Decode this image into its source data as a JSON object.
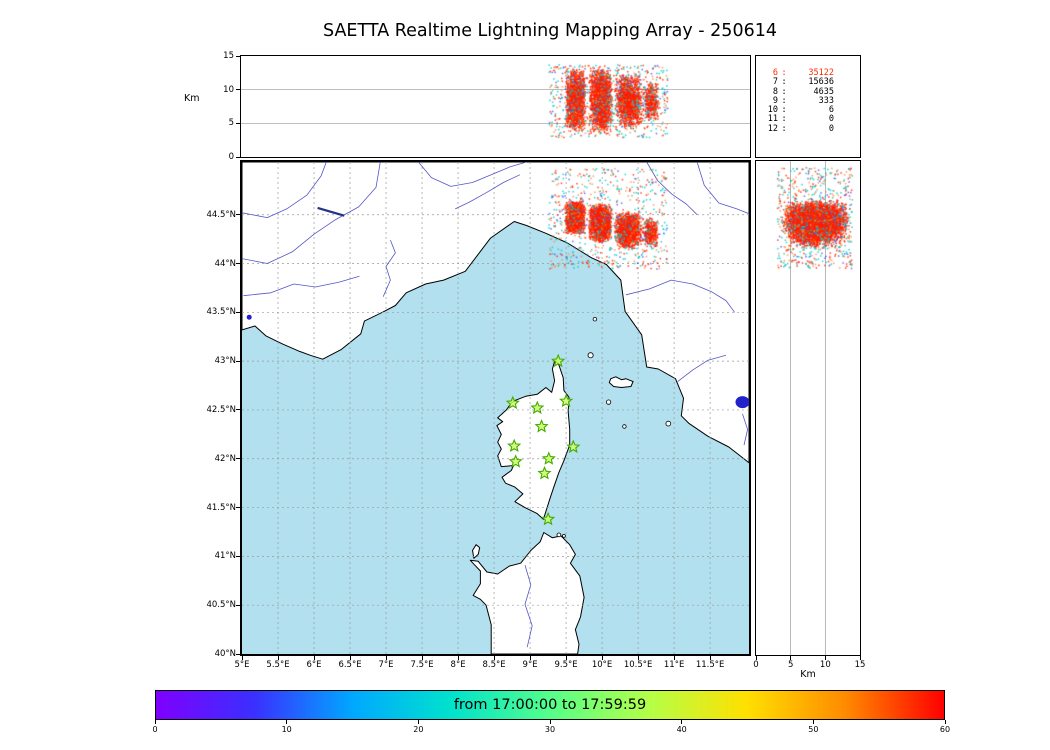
{
  "title": "SAETTA Realtime Lightning Mapping Array - 250614",
  "colors": {
    "sea": "#b2e0ee",
    "land": "#ffffff",
    "coast": "#000000",
    "grid": "#999999",
    "river": "#5555c8",
    "lake": "#2222cc",
    "station_fill": "#ccff66",
    "station_edge": "#44aa00",
    "highlight_row": "#ff2a00"
  },
  "axes": {
    "top_ylabel": "Km",
    "right_xlabel": "Km",
    "alt_ticks": [
      {
        "v": 0,
        "t": "0"
      },
      {
        "v": 5,
        "t": "5"
      },
      {
        "v": 10,
        "t": "10"
      },
      {
        "v": 15,
        "t": "15"
      }
    ],
    "lat_ticks": [
      {
        "v": 40,
        "t": "40°N"
      },
      {
        "v": 40.5,
        "t": "40.5°N"
      },
      {
        "v": 41,
        "t": "41°N"
      },
      {
        "v": 41.5,
        "t": "41.5°N"
      },
      {
        "v": 42,
        "t": "42°N"
      },
      {
        "v": 42.5,
        "t": "42.5°N"
      },
      {
        "v": 43,
        "t": "43°N"
      },
      {
        "v": 43.5,
        "t": "43.5°N"
      },
      {
        "v": 44,
        "t": "44°N"
      },
      {
        "v": 44.5,
        "t": "44.5°N"
      }
    ],
    "lon_ticks": [
      {
        "v": 5,
        "t": "5°E"
      },
      {
        "v": 5.5,
        "t": "5.5°E"
      },
      {
        "v": 6,
        "t": "6°E"
      },
      {
        "v": 6.5,
        "t": "6.5°E"
      },
      {
        "v": 7,
        "t": "7°E"
      },
      {
        "v": 7.5,
        "t": "7.5°E"
      },
      {
        "v": 8,
        "t": "8°E"
      },
      {
        "v": 8.5,
        "t": "8.5°E"
      },
      {
        "v": 9,
        "t": "9°E"
      },
      {
        "v": 9.5,
        "t": "9.5°E"
      },
      {
        "v": 10,
        "t": "10°E"
      },
      {
        "v": 10.5,
        "t": "10.5°E"
      },
      {
        "v": 11,
        "t": "11°E"
      },
      {
        "v": 11.5,
        "t": "11.5°E"
      }
    ]
  },
  "stats_panel": {
    "separator": ":",
    "rows": [
      {
        "level": "6",
        "count": "35122"
      },
      {
        "level": "7",
        "count": "15636"
      },
      {
        "level": "8",
        "count": "4635"
      },
      {
        "level": "9",
        "count": "333"
      },
      {
        "level": "10",
        "count": "6"
      },
      {
        "level": "11",
        "count": "0"
      },
      {
        "level": "12",
        "count": "0"
      }
    ]
  },
  "colorbar": {
    "label": "from 17:00:00 to 17:59:59",
    "ticks": [
      {
        "v": 0,
        "t": "0"
      },
      {
        "v": 10,
        "t": "10"
      },
      {
        "v": 20,
        "t": "20"
      },
      {
        "v": 30,
        "t": "30"
      },
      {
        "v": 40,
        "t": "40"
      },
      {
        "v": 50,
        "t": "50"
      },
      {
        "v": 60,
        "t": "60"
      }
    ],
    "gradient": [
      "#7f00ff",
      "#3a30ff",
      "#00a8ff",
      "#00e2cc",
      "#55ff8a",
      "#b4ff48",
      "#ffe000",
      "#ff8a00",
      "#ff0000"
    ]
  },
  "stations": [
    [
      9.39,
      43.0
    ],
    [
      8.76,
      42.57
    ],
    [
      9.1,
      42.52
    ],
    [
      9.5,
      42.59
    ],
    [
      9.16,
      42.33
    ],
    [
      8.78,
      42.13
    ],
    [
      9.6,
      42.12
    ],
    [
      8.8,
      41.97
    ],
    [
      9.26,
      42.0
    ],
    [
      9.2,
      41.85
    ],
    [
      9.25,
      41.38
    ]
  ],
  "chart_data": {
    "type": "scatter",
    "title": "SAETTA Realtime Lightning Mapping Array - 250614",
    "date": "250614",
    "time_window": {
      "from": "17:00:00",
      "to": "17:59:59"
    },
    "colorbar_axis": {
      "units": "minutes",
      "range": [
        0,
        60
      ]
    },
    "panels": [
      {
        "id": "altitude-vs-longitude",
        "ylabel": "Km",
        "ylim": [
          0,
          15
        ],
        "xlim": [
          5,
          12.04
        ],
        "grid_y": [
          5,
          10
        ]
      },
      {
        "id": "map",
        "xlim": [
          5,
          12.04
        ],
        "ylim": [
          40,
          45.04
        ],
        "grid_step_deg": 0.5
      },
      {
        "id": "altitude-vs-latitude",
        "xlabel": "Km",
        "xlim": [
          0,
          15
        ],
        "ylim": [
          40,
          45.04
        ],
        "grid_x": [
          5,
          10
        ]
      }
    ],
    "sources_by_min_stations": [
      [
        "6",
        35122
      ],
      [
        "7",
        15636
      ],
      [
        "8",
        4635
      ],
      [
        "9",
        333
      ],
      [
        "10",
        6
      ],
      [
        "11",
        0
      ],
      [
        "12",
        0
      ]
    ],
    "clusters": [
      {
        "n": 1900,
        "lon": [
          9.47,
          9.77
        ],
        "lat": [
          44.3,
          44.65
        ],
        "alt": [
          3.8,
          13.2
        ],
        "palette": "core",
        "dist": "tri"
      },
      {
        "n": 2100,
        "lon": [
          9.8,
          10.13
        ],
        "lat": [
          44.22,
          44.62
        ],
        "alt": [
          3.5,
          13.5
        ],
        "palette": "core",
        "dist": "tri"
      },
      {
        "n": 1500,
        "lon": [
          10.16,
          10.55
        ],
        "lat": [
          44.15,
          44.55
        ],
        "alt": [
          4.2,
          12.6
        ],
        "palette": "core",
        "dist": "tri"
      },
      {
        "n": 400,
        "lon": [
          10.55,
          10.78
        ],
        "lat": [
          44.18,
          44.48
        ],
        "alt": [
          5.0,
          11.5
        ],
        "palette": "core",
        "dist": "tri"
      },
      {
        "n": 650,
        "lon": [
          9.25,
          10.9
        ],
        "lat": [
          43.95,
          44.98
        ],
        "alt": [
          3.0,
          13.8
        ],
        "palette": "halo",
        "dist": "uniform"
      }
    ],
    "palettes": {
      "core": [
        {
          "c": "#ff1c00",
          "w": 0.8
        },
        {
          "c": "#ff6a00",
          "w": 0.1
        },
        {
          "c": "#00d4d4",
          "w": 0.07
        },
        {
          "c": "#3366ff",
          "w": 0.03
        }
      ],
      "halo": [
        {
          "c": "#00cccc",
          "w": 0.4
        },
        {
          "c": "#ff8844",
          "w": 0.25
        },
        {
          "c": "#ff2200",
          "w": 0.25
        },
        {
          "c": "#4455ff",
          "w": 0.1
        }
      ]
    }
  }
}
